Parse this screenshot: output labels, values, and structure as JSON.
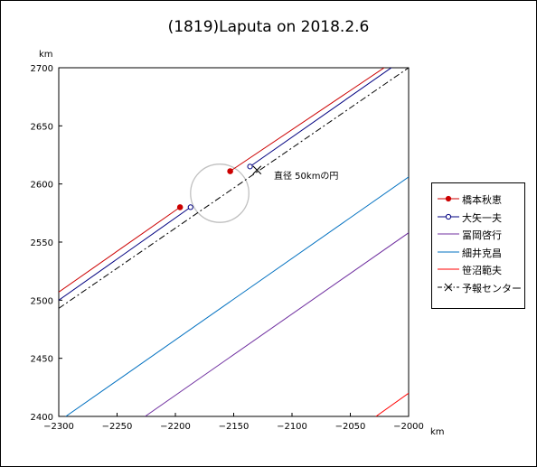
{
  "chart_data": {
    "type": "line",
    "title": "(1819)Laputa on 2018.2.6",
    "xlabel": "km",
    "ylabel": "km",
    "xlim": [
      -2300,
      -2000
    ],
    "ylim": [
      2400,
      2700
    ],
    "x_ticks": [
      -2300,
      -2250,
      -2200,
      -2150,
      -2100,
      -2050,
      -2000
    ],
    "y_ticks": [
      2400,
      2450,
      2500,
      2550,
      2600,
      2650,
      2700
    ],
    "legend_position": "right",
    "annotation": "直径 50kmの円",
    "circle": {
      "center": [
        -2162,
        2592
      ],
      "diameter": 50,
      "color": "#c0c0c0"
    },
    "series": [
      {
        "name": "橋本秋恵",
        "color": "#cc0000",
        "marker": "filled-circle",
        "segments": [
          {
            "x": [
              -2300,
              -2196
            ],
            "y": [
              2507,
              2580
            ]
          },
          {
            "x": [
              -2153,
              -2018
            ],
            "y": [
              2611,
              2702
            ]
          }
        ],
        "points": [
          {
            "x": -2196,
            "y": 2580
          },
          {
            "x": -2153,
            "y": 2611
          }
        ]
      },
      {
        "name": "大矢一夫",
        "color": "#000080",
        "marker": "open-circle",
        "segments": [
          {
            "x": [
              -2300,
              -2187
            ],
            "y": [
              2500,
              2580
            ]
          },
          {
            "x": [
              -2136,
              -2012
            ],
            "y": [
              2615,
              2702
            ]
          }
        ],
        "points": [
          {
            "x": -2187,
            "y": 2580
          },
          {
            "x": -2136,
            "y": 2615
          }
        ]
      },
      {
        "name": "冨岡啓行",
        "color": "#7030a0",
        "marker": "none",
        "segments": [
          {
            "x": [
              -2226,
              -2000
            ],
            "y": [
              2400,
              2558
            ]
          }
        ]
      },
      {
        "name": "細井克昌",
        "color": "#0070c0",
        "marker": "none",
        "segments": [
          {
            "x": [
              -2294,
              -2000
            ],
            "y": [
              2400,
              2606
            ]
          }
        ]
      },
      {
        "name": "笹沼範夫",
        "color": "#ff0000",
        "marker": "none",
        "segments": [
          {
            "x": [
              -2028,
              -2000
            ],
            "y": [
              2400,
              2420
            ]
          }
        ]
      },
      {
        "name": "予報センター",
        "color": "#000000",
        "marker": "x",
        "dash": "dash-dot",
        "segments": [
          {
            "x": [
              -2300,
              -2000
            ],
            "y": [
              2493,
              2700
            ]
          }
        ],
        "points": [
          {
            "x": -2130,
            "y": 2612
          }
        ]
      }
    ]
  }
}
